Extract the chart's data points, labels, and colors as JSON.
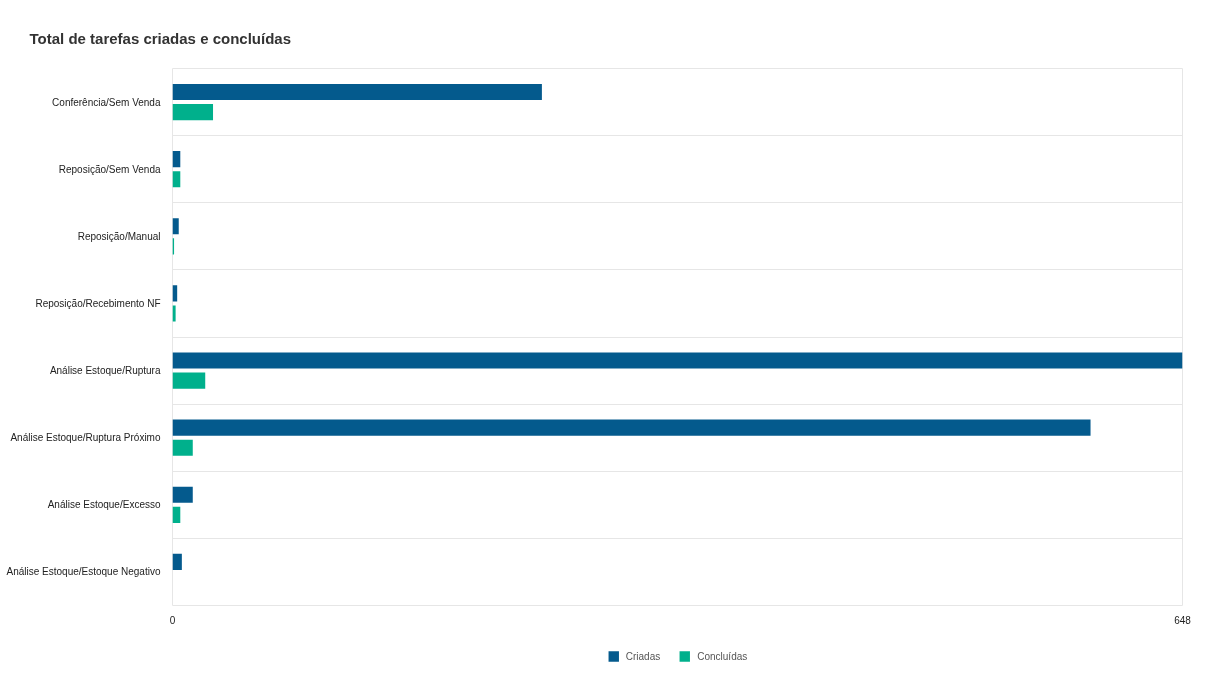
{
  "chart_data": {
    "type": "bar",
    "orientation": "horizontal",
    "title": "Total de tarefas criadas e concluídas",
    "categories": [
      "Conferência/Sem Venda",
      "Reposição/Sem Venda",
      "Reposição/Manual",
      "Reposição/Recebimento NF",
      "Análise Estoque/Ruptura",
      "Análise Estoque/Ruptura Próximo",
      "Análise Estoque/Excesso",
      "Análise Estoque/Estoque Negativo"
    ],
    "series": [
      {
        "name": "Criadas",
        "color": "#045a8d",
        "values": [
          237,
          5,
          4,
          3,
          648,
          589,
          13,
          6
        ]
      },
      {
        "name": "Concluídas",
        "color": "#00b08c",
        "values": [
          26,
          5,
          1,
          2,
          21,
          13,
          5,
          null
        ]
      }
    ],
    "xlim": [
      0,
      648
    ],
    "xticks": [
      0,
      648
    ],
    "grid": true,
    "legend": "bottom"
  }
}
